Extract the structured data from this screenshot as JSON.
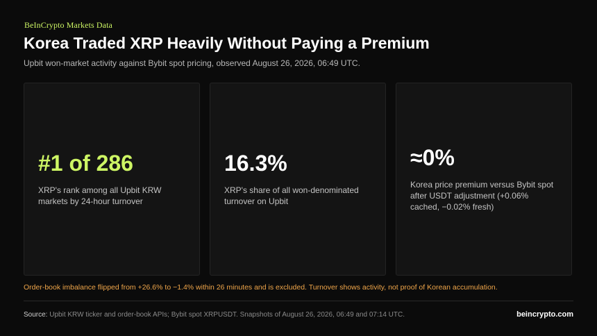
{
  "header": {
    "eyebrow": "BeInCrypto Markets Data",
    "title": "Korea Traded XRP Heavily Without Paying a Premium",
    "subtitle": "Upbit won-market activity against Bybit spot pricing, observed August 26, 2026, 06:49 UTC."
  },
  "cards": [
    {
      "value": "#1 of 286",
      "desc": "XRP's rank among all Upbit KRW markets by 24-hour turnover"
    },
    {
      "value": "16.3%",
      "desc": "XRP's share of all won-denominated turnover on Upbit"
    },
    {
      "value": "≈0%",
      "desc": "Korea price premium versus Bybit spot after USDT adjustment (+0.06% cached, −0.02% fresh)"
    }
  ],
  "note": "Order-book imbalance flipped from +26.6% to −1.4% within 26 minutes and is excluded. Turnover shows activity, not proof of Korean accumulation.",
  "footer": {
    "source_label": "Source:",
    "source_text": "Upbit KRW ticker and order-book APIs; Bybit spot XRPUSDT. Snapshots of August 26, 2026, 06:49 and 07:14 UTC.",
    "site": "beincrypto.com"
  },
  "colors": {
    "accent": "#cdf564",
    "warning": "#f0a64a",
    "background": "#0b0b0b",
    "card": "#141414"
  }
}
